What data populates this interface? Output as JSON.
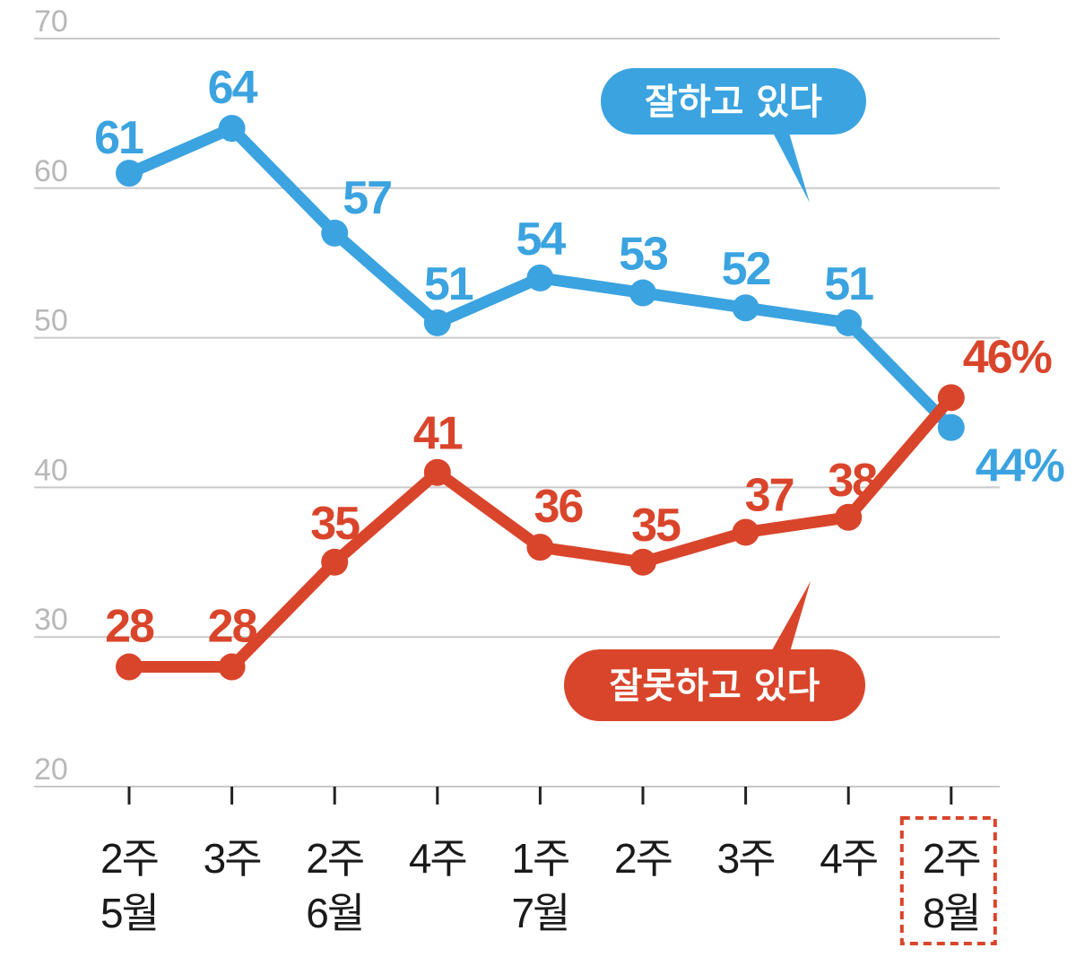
{
  "chart_data": {
    "type": "line",
    "categories": [
      {
        "week": "2주",
        "month": "5월"
      },
      {
        "week": "3주",
        "month": ""
      },
      {
        "week": "2주",
        "month": "6월"
      },
      {
        "week": "4주",
        "month": ""
      },
      {
        "week": "1주",
        "month": "7월"
      },
      {
        "week": "2주",
        "month": ""
      },
      {
        "week": "3주",
        "month": ""
      },
      {
        "week": "4주",
        "month": ""
      },
      {
        "week": "2주",
        "month": "8월"
      }
    ],
    "yticks": [
      70,
      60,
      50,
      40,
      30,
      20
    ],
    "ylim": [
      20,
      70
    ],
    "grid": true,
    "highlighted_category_index": 8,
    "series": [
      {
        "name": "잘하고 있다",
        "color": "#3ba3e0",
        "values": [
          61,
          64,
          57,
          51,
          54,
          53,
          52,
          51,
          44
        ],
        "labels": [
          "61",
          "64",
          "57",
          "51",
          "54",
          "53",
          "52",
          "51",
          "44%"
        ]
      },
      {
        "name": "잘못하고 있다",
        "color": "#d9452b",
        "values": [
          28,
          28,
          35,
          41,
          36,
          35,
          37,
          38,
          46
        ],
        "labels": [
          "28",
          "28",
          "35",
          "41",
          "36",
          "35",
          "37",
          "38",
          "46%"
        ]
      }
    ]
  }
}
